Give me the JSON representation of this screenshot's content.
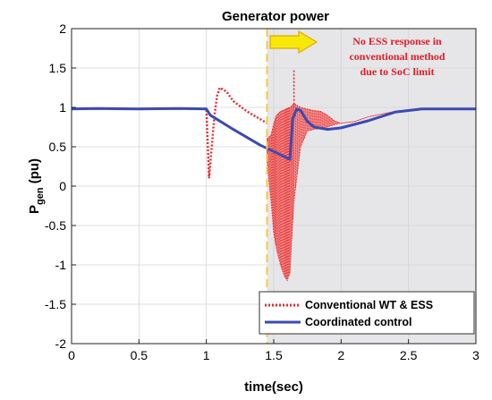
{
  "chart_data": {
    "type": "line",
    "title": "Generator power",
    "xlabel": "time(sec)",
    "ylabel_main": "P",
    "ylabel_sub": "gen",
    "ylabel_unit": " (pu)",
    "xlim": [
      0,
      3
    ],
    "ylim": [
      -2,
      2
    ],
    "xticks": [
      0,
      0.5,
      1,
      1.5,
      2,
      2.5,
      3
    ],
    "xtick_labels": [
      "0",
      "0.5",
      "1",
      "1.5",
      "2",
      "2.5",
      "3"
    ],
    "yticks": [
      -2,
      -1.5,
      -1,
      -0.5,
      0,
      0.5,
      1,
      1.5,
      2
    ],
    "ytick_labels": [
      "-2",
      "-1.5",
      "-1",
      "-0.5",
      "0",
      "0.5",
      "1",
      "1.5",
      "2"
    ],
    "grid": true,
    "legend_position": "bottom-right",
    "shaded_region": {
      "x_start": 1.45,
      "x_end": 3,
      "color": "#e6e6e9"
    },
    "vertical_line": {
      "x": 1.45,
      "color": "#f2c94c"
    },
    "annotation": {
      "lines": [
        "No ESS response in",
        "conventional method",
        "due to SoC limit"
      ],
      "color": "#e0202a",
      "arrow_color": "#f7e80a"
    },
    "series": [
      {
        "name": "Conventional WT & ESS",
        "color": "#e8282a",
        "style": "dotted",
        "x": [
          0,
          0.2,
          0.5,
          0.8,
          0.99,
          1.0,
          1.02,
          1.04,
          1.06,
          1.08,
          1.1,
          1.15,
          1.2,
          1.3,
          1.4,
          1.45
        ],
        "values": [
          0.98,
          0.985,
          0.98,
          0.985,
          0.98,
          0.98,
          0.1,
          0.5,
          0.9,
          1.15,
          1.25,
          1.2,
          1.08,
          0.95,
          0.85,
          0.8
        ],
        "band": {
          "x": [
            1.45,
            1.48,
            1.5,
            1.52,
            1.55,
            1.58,
            1.6,
            1.62,
            1.65,
            1.7,
            1.75,
            1.8,
            1.85,
            1.9,
            1.95,
            2.0,
            2.1,
            2.2,
            2.4,
            2.6,
            2.8,
            3.0
          ],
          "upper": [
            0.6,
            0.65,
            0.8,
            0.9,
            0.95,
            0.97,
            0.99,
            1.0,
            1.05,
            1.0,
            0.98,
            0.96,
            0.95,
            0.9,
            0.83,
            0.8,
            0.82,
            0.88,
            0.95,
            0.98,
            0.98,
            0.98
          ],
          "lower": [
            0.3,
            -0.2,
            -0.6,
            -0.8,
            -1.0,
            -1.15,
            -1.2,
            -1.1,
            -0.2,
            0.5,
            0.7,
            0.72,
            0.73,
            0.75,
            0.78,
            0.8,
            0.82,
            0.88,
            0.95,
            0.98,
            0.98,
            0.98
          ]
        },
        "spike": {
          "x": 1.65,
          "y": 1.47
        }
      },
      {
        "name": "Coordinated control",
        "color": "#3b4bb0",
        "style": "solid",
        "x": [
          0,
          0.2,
          0.5,
          0.8,
          1.0,
          1.03,
          1.2,
          1.4,
          1.55,
          1.62,
          1.64,
          1.67,
          1.7,
          1.75,
          1.8,
          1.9,
          2.0,
          2.2,
          2.4,
          2.6,
          2.8,
          3.0
        ],
        "values": [
          0.98,
          0.985,
          0.98,
          0.985,
          0.98,
          0.9,
          0.72,
          0.52,
          0.4,
          0.34,
          0.85,
          0.98,
          0.96,
          0.82,
          0.75,
          0.72,
          0.74,
          0.83,
          0.94,
          0.98,
          0.98,
          0.98
        ]
      }
    ]
  }
}
